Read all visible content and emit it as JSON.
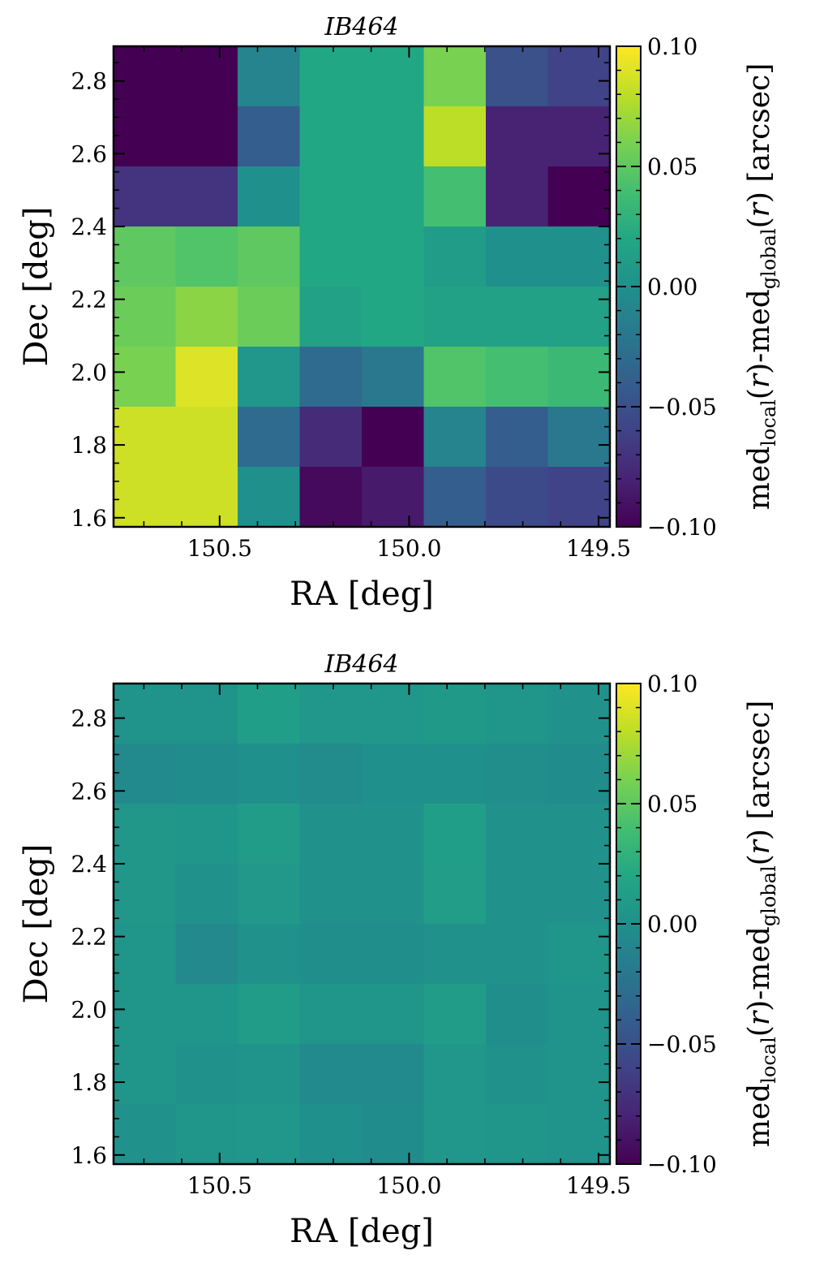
{
  "chart_data": [
    {
      "type": "heatmap",
      "title": "IB464",
      "xlabel": "RA [deg]",
      "ylabel": "Dec [deg]",
      "xlim": [
        150.78,
        149.47
      ],
      "ylim": [
        1.575,
        2.895
      ],
      "x_ticks": [
        150.5,
        150.0,
        149.5
      ],
      "x_tick_labels": [
        "150.5",
        "150.0",
        "149.5"
      ],
      "y_ticks": [
        1.6,
        1.8,
        2.0,
        2.2,
        2.4,
        2.6,
        2.8
      ],
      "y_tick_labels": [
        "1.6",
        "1.8",
        "2.0",
        "2.2",
        "2.4",
        "2.6",
        "2.8"
      ],
      "colorbar": {
        "label": "med_local(r)-med_global(r) [arcsec]",
        "min": -0.1,
        "max": 0.1,
        "ticks": [
          0.1,
          0.05,
          0.0,
          -0.05,
          -0.1
        ],
        "tick_labels": [
          "0.10",
          "0.05",
          "0.00",
          "−0.05",
          "−0.10"
        ],
        "colormap": "viridis"
      },
      "grid_note": "rows listed top (highest Dec) to bottom; columns listed left (highest RA) to right",
      "values": [
        [
          -0.1,
          -0.1,
          -0.01,
          0.02,
          0.02,
          0.06,
          -0.05,
          -0.06
        ],
        [
          -0.1,
          -0.1,
          -0.04,
          0.02,
          0.02,
          0.08,
          -0.08,
          -0.08
        ],
        [
          -0.07,
          -0.07,
          0.0,
          0.02,
          0.02,
          0.04,
          -0.08,
          -0.1
        ],
        [
          0.05,
          0.045,
          0.05,
          0.02,
          0.02,
          0.01,
          0.0,
          0.0
        ],
        [
          0.055,
          0.065,
          0.055,
          0.015,
          0.02,
          0.015,
          0.015,
          0.015
        ],
        [
          0.06,
          0.09,
          0.005,
          -0.03,
          -0.02,
          0.045,
          0.04,
          0.035
        ],
        [
          0.085,
          0.085,
          -0.03,
          -0.075,
          -0.1,
          -0.01,
          -0.04,
          -0.02
        ],
        [
          0.085,
          0.085,
          0.0,
          -0.095,
          -0.085,
          -0.04,
          -0.055,
          -0.06
        ]
      ]
    },
    {
      "type": "heatmap",
      "title": "IB464",
      "xlabel": "RA [deg]",
      "ylabel": "Dec [deg]",
      "xlim": [
        150.78,
        149.47
      ],
      "ylim": [
        1.575,
        2.895
      ],
      "x_ticks": [
        150.5,
        150.0,
        149.5
      ],
      "x_tick_labels": [
        "150.5",
        "150.0",
        "149.5"
      ],
      "y_ticks": [
        1.6,
        1.8,
        2.0,
        2.2,
        2.4,
        2.6,
        2.8
      ],
      "y_tick_labels": [
        "1.6",
        "1.8",
        "2.0",
        "2.2",
        "2.4",
        "2.6",
        "2.8"
      ],
      "colorbar": {
        "label": "med_local(r)-med_global(r) [arcsec]",
        "min": -0.1,
        "max": 0.1,
        "ticks": [
          0.1,
          0.05,
          0.0,
          -0.05,
          -0.1
        ],
        "tick_labels": [
          "0.10",
          "0.05",
          "0.00",
          "−0.05",
          "−0.10"
        ],
        "colormap": "viridis"
      },
      "grid_note": "rows listed top (highest Dec) to bottom; columns listed left (highest RA) to right",
      "values": [
        [
          0.003,
          0.003,
          0.012,
          0.005,
          0.005,
          0.008,
          0.004,
          0.002
        ],
        [
          -0.005,
          -0.003,
          0.0,
          -0.004,
          0.0,
          0.0,
          -0.002,
          -0.003
        ],
        [
          0.006,
          0.004,
          0.01,
          0.002,
          0.002,
          0.012,
          0.002,
          0.002
        ],
        [
          0.006,
          0.002,
          0.007,
          0.002,
          0.002,
          0.011,
          0.002,
          0.002
        ],
        [
          0.004,
          -0.006,
          0.002,
          -0.001,
          -0.001,
          0.002,
          0.002,
          0.004
        ],
        [
          0.004,
          0.004,
          0.01,
          0.004,
          0.004,
          0.01,
          -0.001,
          0.003
        ],
        [
          0.004,
          0.002,
          0.003,
          -0.005,
          -0.005,
          0.005,
          0.002,
          0.003
        ],
        [
          0.002,
          0.004,
          0.005,
          0.0,
          -0.003,
          0.005,
          0.004,
          0.003
        ]
      ]
    }
  ]
}
